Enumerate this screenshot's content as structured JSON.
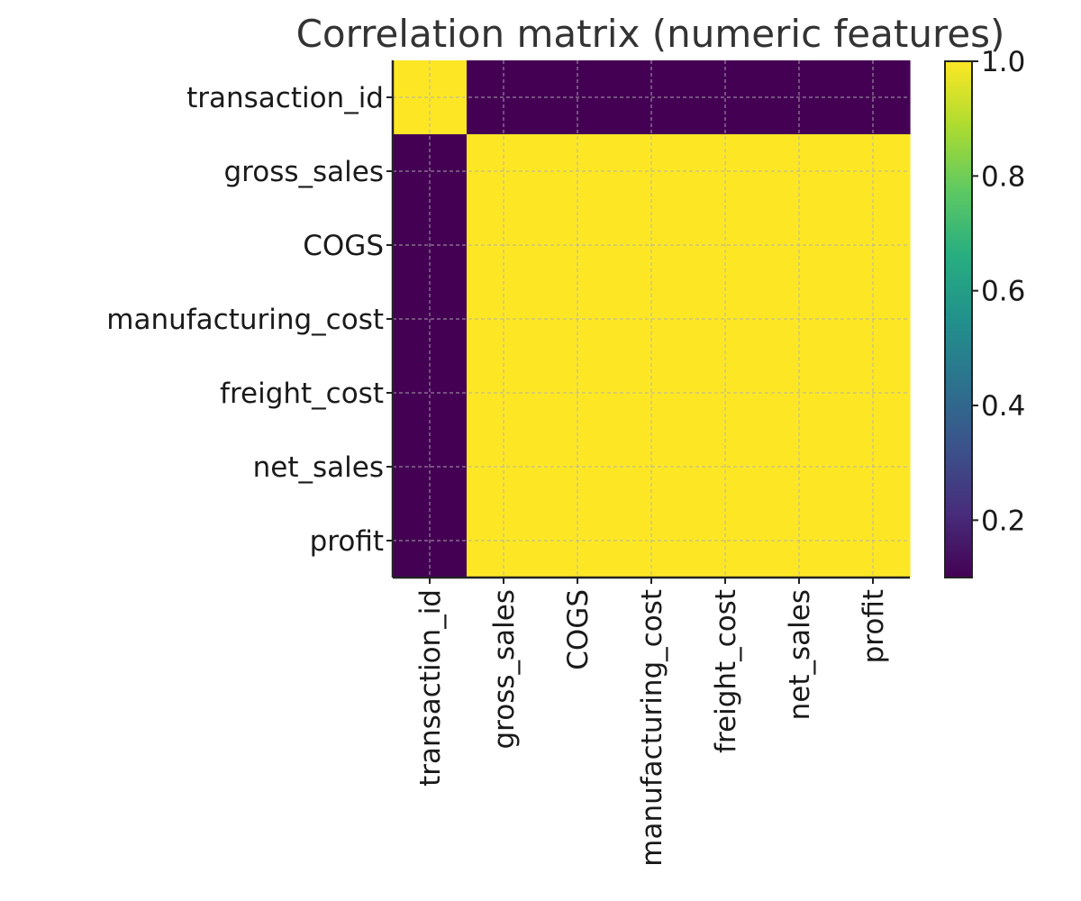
{
  "chart_data": {
    "type": "heatmap",
    "title": "Correlation matrix (numeric features)",
    "xlabel": "",
    "ylabel": "",
    "rows": [
      "transaction_id",
      "gross_sales",
      "COGS",
      "manufacturing_cost",
      "freight_cost",
      "net_sales",
      "profit"
    ],
    "columns": [
      "transaction_id",
      "gross_sales",
      "COGS",
      "manufacturing_cost",
      "freight_cost",
      "net_sales",
      "profit"
    ],
    "values": [
      [
        1.0,
        0.1,
        0.1,
        0.1,
        0.1,
        0.1,
        0.1
      ],
      [
        0.1,
        1.0,
        1.0,
        1.0,
        1.0,
        1.0,
        1.0
      ],
      [
        0.1,
        1.0,
        1.0,
        1.0,
        1.0,
        1.0,
        1.0
      ],
      [
        0.1,
        1.0,
        1.0,
        1.0,
        1.0,
        1.0,
        1.0
      ],
      [
        0.1,
        1.0,
        1.0,
        1.0,
        1.0,
        1.0,
        1.0
      ],
      [
        0.1,
        1.0,
        1.0,
        1.0,
        1.0,
        1.0,
        1.0
      ],
      [
        0.1,
        1.0,
        1.0,
        1.0,
        1.0,
        1.0,
        1.0
      ]
    ],
    "colormap": "viridis",
    "colorbar": {
      "range": [
        0.1,
        1.0
      ],
      "ticks": [
        0.2,
        0.4,
        0.6,
        0.8,
        1.0
      ],
      "tick_labels": [
        "0.2",
        "0.4",
        "0.6",
        "0.8",
        "1.0"
      ]
    },
    "grid": true,
    "legend": "none"
  }
}
